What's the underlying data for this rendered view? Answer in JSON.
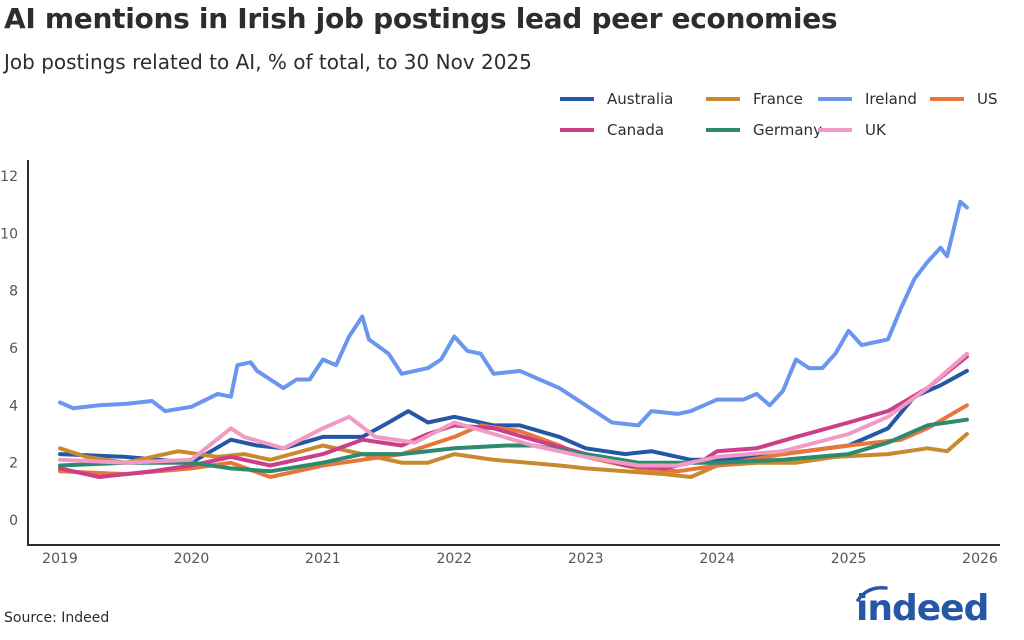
{
  "title": "AI mentions in Irish job postings lead peer economies",
  "subtitle": "Job postings related to AI, % of total, to 30 Nov 2025",
  "source": "Source: Indeed",
  "logo_text": "indeed",
  "chart_data": {
    "type": "line",
    "title": "AI mentions in Irish job postings lead peer economies",
    "subtitle": "Job postings related to AI, % of total, to 30 Nov 2025",
    "xlabel": "",
    "ylabel": "",
    "xlim": [
      2019,
      2026
    ],
    "ylim": [
      0,
      12
    ],
    "x_ticks": [
      "2019",
      "2020",
      "2021",
      "2022",
      "2023",
      "2024",
      "2025",
      "2026"
    ],
    "y_ticks": [
      "0",
      "2",
      "4",
      "6",
      "8",
      "10",
      "12"
    ],
    "grid": false,
    "legend_position": "top-right",
    "series": [
      {
        "name": "Australia",
        "color": "#2557a7",
        "x": [
          2019,
          2019.5,
          2020,
          2020.3,
          2020.5,
          2020.7,
          2021,
          2021.3,
          2021.5,
          2021.65,
          2021.8,
          2022,
          2022.3,
          2022.5,
          2022.8,
          2023,
          2023.3,
          2023.5,
          2023.8,
          2024,
          2024.5,
          2025,
          2025.3,
          2025.5,
          2025.7,
          2025.9
        ],
        "y": [
          2.3,
          2.2,
          2.0,
          2.8,
          2.6,
          2.5,
          2.9,
          2.9,
          3.4,
          3.8,
          3.4,
          3.6,
          3.3,
          3.3,
          2.9,
          2.5,
          2.3,
          2.4,
          2.1,
          2.1,
          2.3,
          2.6,
          3.2,
          4.3,
          4.7,
          5.2
        ]
      },
      {
        "name": "France",
        "color": "#c88a2e",
        "x": [
          2019,
          2019.2,
          2019.5,
          2019.9,
          2020.2,
          2020.4,
          2020.6,
          2021,
          2021.3,
          2021.6,
          2021.8,
          2022,
          2022.3,
          2022.8,
          2023,
          2023.3,
          2023.6,
          2023.8,
          2024,
          2024.3,
          2024.6,
          2024.9,
          2025.3,
          2025.6,
          2025.75,
          2025.9
        ],
        "y": [
          2.5,
          2.2,
          2.0,
          2.4,
          2.2,
          2.3,
          2.1,
          2.6,
          2.3,
          2.0,
          2.0,
          2.3,
          2.1,
          1.9,
          1.8,
          1.7,
          1.6,
          1.5,
          1.9,
          2.0,
          2.0,
          2.2,
          2.3,
          2.5,
          2.4,
          3.0
        ]
      },
      {
        "name": "Ireland",
        "color": "#6a96f0",
        "x": [
          2019,
          2019.1,
          2019.3,
          2019.5,
          2019.7,
          2019.8,
          2020,
          2020.2,
          2020.3,
          2020.35,
          2020.45,
          2020.5,
          2020.6,
          2020.7,
          2020.8,
          2020.9,
          2021,
          2021.1,
          2021.2,
          2021.3,
          2021.35,
          2021.5,
          2021.6,
          2021.8,
          2021.9,
          2022,
          2022.1,
          2022.2,
          2022.3,
          2022.5,
          2022.6,
          2022.8,
          2023,
          2023.2,
          2023.4,
          2023.5,
          2023.7,
          2023.8,
          2024,
          2024.2,
          2024.3,
          2024.4,
          2024.5,
          2024.6,
          2024.7,
          2024.8,
          2024.9,
          2025,
          2025.1,
          2025.3,
          2025.4,
          2025.5,
          2025.6,
          2025.7,
          2025.75,
          2025.85,
          2025.9
        ],
        "y": [
          4.1,
          3.9,
          4.0,
          4.05,
          4.15,
          3.8,
          3.95,
          4.4,
          4.3,
          5.4,
          5.5,
          5.2,
          4.9,
          4.6,
          4.9,
          4.9,
          5.6,
          5.4,
          6.4,
          7.1,
          6.3,
          5.8,
          5.1,
          5.3,
          5.6,
          6.4,
          5.9,
          5.8,
          5.1,
          5.2,
          5.0,
          4.6,
          4.0,
          3.4,
          3.3,
          3.8,
          3.7,
          3.8,
          4.2,
          4.2,
          4.4,
          4.0,
          4.5,
          5.6,
          5.3,
          5.3,
          5.8,
          6.6,
          6.1,
          6.3,
          7.4,
          8.4,
          9.0,
          9.5,
          9.2,
          11.1,
          10.9
        ]
      },
      {
        "name": "US",
        "color": "#e8763a",
        "x": [
          2019,
          2019.5,
          2020,
          2020.3,
          2020.6,
          2021,
          2021.3,
          2021.6,
          2022,
          2022.2,
          2022.5,
          2022.8,
          2023,
          2023.4,
          2023.7,
          2024,
          2024.5,
          2025,
          2025.4,
          2025.6,
          2025.9
        ],
        "y": [
          1.7,
          1.6,
          1.8,
          2.0,
          1.5,
          1.9,
          2.1,
          2.3,
          2.9,
          3.3,
          3.1,
          2.6,
          2.2,
          1.8,
          1.7,
          1.9,
          2.3,
          2.6,
          2.8,
          3.2,
          4.0
        ]
      },
      {
        "name": "Canada",
        "color": "#cc3f88",
        "x": [
          2019,
          2019.3,
          2019.7,
          2020,
          2020.3,
          2020.6,
          2021,
          2021.3,
          2021.6,
          2021.8,
          2022,
          2022.3,
          2022.6,
          2023,
          2023.3,
          2023.6,
          2023.9,
          2024,
          2024.3,
          2024.6,
          2025,
          2025.3,
          2025.6,
          2025.9
        ],
        "y": [
          1.8,
          1.5,
          1.7,
          1.9,
          2.2,
          1.9,
          2.3,
          2.8,
          2.6,
          3.0,
          3.3,
          3.2,
          2.8,
          2.3,
          1.9,
          1.8,
          2.1,
          2.4,
          2.5,
          2.9,
          3.4,
          3.8,
          4.6,
          5.7
        ]
      },
      {
        "name": "Germany",
        "color": "#2e8a6e",
        "x": [
          2019,
          2019.5,
          2020,
          2020.3,
          2020.6,
          2021,
          2021.3,
          2021.6,
          2022,
          2022.4,
          2022.6,
          2023,
          2023.4,
          2023.8,
          2024,
          2024.5,
          2025,
          2025.3,
          2025.6,
          2025.9
        ],
        "y": [
          1.9,
          2.0,
          2.0,
          1.8,
          1.7,
          2.0,
          2.3,
          2.3,
          2.5,
          2.6,
          2.6,
          2.3,
          2.0,
          2.0,
          2.0,
          2.1,
          2.3,
          2.7,
          3.3,
          3.5
        ]
      },
      {
        "name": "UK",
        "color": "#f09ac4",
        "x": [
          2019,
          2019.5,
          2020,
          2020.3,
          2020.4,
          2020.7,
          2021,
          2021.2,
          2021.4,
          2021.7,
          2022,
          2022.3,
          2022.6,
          2023,
          2023.4,
          2023.7,
          2024,
          2024.5,
          2025,
          2025.3,
          2025.6,
          2025.9
        ],
        "y": [
          2.1,
          2.0,
          2.1,
          3.2,
          2.9,
          2.5,
          3.2,
          3.6,
          2.9,
          2.7,
          3.4,
          3.0,
          2.6,
          2.2,
          1.9,
          1.9,
          2.2,
          2.4,
          3.0,
          3.6,
          4.6,
          5.8
        ]
      }
    ]
  }
}
